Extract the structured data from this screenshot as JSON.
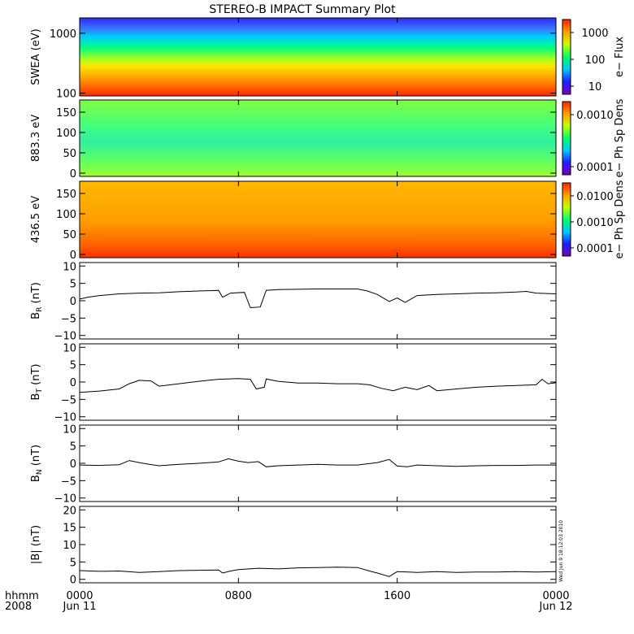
{
  "title": "STEREO-B IMPACT Summary Plot",
  "footer": {
    "hhmm_label": "hhmm",
    "year_label": "2008",
    "start_date": "Jun 11",
    "end_date": "Jun 12",
    "stamp": "Wed Jun  9 18:12:03 2010"
  },
  "time_axis": {
    "range_hours": [
      0,
      24
    ],
    "ticks": [
      {
        "hour": 0,
        "label": "0000"
      },
      {
        "hour": 8,
        "label": "0800"
      },
      {
        "hour": 16,
        "label": "1600"
      },
      {
        "hour": 24,
        "label": "0000"
      }
    ]
  },
  "colors": {
    "spectrum": [
      "#7a00b8",
      "#1f1fff",
      "#00c8ff",
      "#00ff66",
      "#c8ff00",
      "#ffa000",
      "#ff2000"
    ],
    "trace": "#000000",
    "frame": "#000000"
  },
  "panels": [
    {
      "kind": "spectrogram",
      "ylabel": "SWEA (eV)",
      "ylabels": [
        {
          "v": 1000,
          "text": "1000"
        },
        {
          "v": 100,
          "text": "100"
        }
      ],
      "yrange": [
        90,
        1800
      ],
      "scale": "log",
      "colorbar": {
        "label": "e− Flux",
        "ticks": [
          "1000",
          "100",
          "10"
        ]
      }
    },
    {
      "kind": "spectrogram",
      "ylabel": "883.3 eV",
      "ylabels": [
        {
          "v": 150,
          "text": "150"
        },
        {
          "v": 100,
          "text": "100"
        },
        {
          "v": 50,
          "text": "50"
        },
        {
          "v": 0,
          "text": "0"
        }
      ],
      "yrange": [
        -8,
        180
      ],
      "colorbar": {
        "label": "e− Ph Sp Dens",
        "ticks": [
          "0.0010",
          "0.0001"
        ]
      }
    },
    {
      "kind": "spectrogram",
      "ylabel": "436.5 eV",
      "ylabels": [
        {
          "v": 150,
          "text": "150"
        },
        {
          "v": 100,
          "text": "100"
        },
        {
          "v": 50,
          "text": "50"
        },
        {
          "v": 0,
          "text": "0"
        }
      ],
      "yrange": [
        -8,
        180
      ],
      "colorbar": {
        "label": "e− Ph Sp Dens",
        "ticks": [
          "0.0100",
          "0.0010",
          "0.0001"
        ]
      }
    },
    {
      "kind": "line",
      "ylabel": "B",
      "ysub": "R",
      "yunit": " (nT)",
      "ylabels": [
        {
          "v": 10,
          "text": "10"
        },
        {
          "v": 5,
          "text": "5"
        },
        {
          "v": 0,
          "text": "0"
        },
        {
          "v": -5,
          "text": "−5"
        },
        {
          "v": -10,
          "text": "−10"
        }
      ],
      "yrange": [
        -11,
        11
      ],
      "series": [
        [
          0,
          0.5
        ],
        [
          0.4,
          1.0
        ],
        [
          1,
          1.5
        ],
        [
          2,
          2.0
        ],
        [
          3,
          2.2
        ],
        [
          4,
          2.3
        ],
        [
          5,
          2.6
        ],
        [
          6,
          2.8
        ],
        [
          7,
          3.0
        ],
        [
          7.2,
          1.0
        ],
        [
          7.6,
          2.2
        ],
        [
          8.3,
          2.4
        ],
        [
          8.6,
          -2.0
        ],
        [
          9.1,
          -1.8
        ],
        [
          9.4,
          3.0
        ],
        [
          10,
          3.2
        ],
        [
          11,
          3.3
        ],
        [
          12,
          3.4
        ],
        [
          13,
          3.4
        ],
        [
          14,
          3.4
        ],
        [
          14.5,
          2.8
        ],
        [
          15,
          1.8
        ],
        [
          15.6,
          -0.2
        ],
        [
          16,
          0.8
        ],
        [
          16.4,
          -0.5
        ],
        [
          17,
          1.5
        ],
        [
          18,
          1.8
        ],
        [
          19,
          2.0
        ],
        [
          20,
          2.2
        ],
        [
          21,
          2.3
        ],
        [
          22,
          2.5
        ],
        [
          22.5,
          2.7
        ],
        [
          23,
          2.2
        ],
        [
          24,
          2.0
        ]
      ]
    },
    {
      "kind": "line",
      "ylabel": "B",
      "ysub": "T",
      "yunit": " (nT)",
      "ylabels": [
        {
          "v": 10,
          "text": "10"
        },
        {
          "v": 5,
          "text": "5"
        },
        {
          "v": 0,
          "text": "0"
        },
        {
          "v": -5,
          "text": "−5"
        },
        {
          "v": -10,
          "text": "−10"
        }
      ],
      "yrange": [
        -11,
        11
      ],
      "series": [
        [
          0,
          -3.0
        ],
        [
          1,
          -2.6
        ],
        [
          2,
          -2.0
        ],
        [
          2.5,
          -0.5
        ],
        [
          3,
          0.5
        ],
        [
          3.6,
          0.3
        ],
        [
          4,
          -1.2
        ],
        [
          5,
          -0.5
        ],
        [
          6,
          0.2
        ],
        [
          7,
          0.8
        ],
        [
          8,
          1.0
        ],
        [
          8.6,
          0.8
        ],
        [
          8.9,
          -2.0
        ],
        [
          9.3,
          -1.5
        ],
        [
          9.4,
          0.9
        ],
        [
          10,
          0.2
        ],
        [
          11,
          -0.3
        ],
        [
          12,
          -0.3
        ],
        [
          13,
          -0.5
        ],
        [
          14,
          -0.5
        ],
        [
          14.6,
          -0.8
        ],
        [
          15.2,
          -1.8
        ],
        [
          15.8,
          -2.5
        ],
        [
          16.4,
          -1.5
        ],
        [
          17,
          -2.2
        ],
        [
          17.6,
          -1.0
        ],
        [
          18,
          -2.5
        ],
        [
          19,
          -2.0
        ],
        [
          20,
          -1.5
        ],
        [
          21,
          -1.2
        ],
        [
          22,
          -1.0
        ],
        [
          23,
          -0.8
        ],
        [
          23.3,
          0.8
        ],
        [
          23.6,
          -0.5
        ],
        [
          24,
          -0.2
        ]
      ]
    },
    {
      "kind": "line",
      "ylabel": "B",
      "ysub": "N",
      "yunit": " (nT)",
      "ylabels": [
        {
          "v": 10,
          "text": "10"
        },
        {
          "v": 5,
          "text": "5"
        },
        {
          "v": 0,
          "text": "0"
        },
        {
          "v": -5,
          "text": "−5"
        },
        {
          "v": -10,
          "text": "−10"
        }
      ],
      "yrange": [
        -11,
        11
      ],
      "series": [
        [
          0,
          -0.5
        ],
        [
          1,
          -0.6
        ],
        [
          2,
          -0.4
        ],
        [
          2.5,
          0.8
        ],
        [
          3,
          0.2
        ],
        [
          3.5,
          -0.3
        ],
        [
          4,
          -0.7
        ],
        [
          5,
          -0.3
        ],
        [
          6,
          0.0
        ],
        [
          7,
          0.4
        ],
        [
          7.5,
          1.3
        ],
        [
          8,
          0.6
        ],
        [
          8.5,
          0.2
        ],
        [
          9,
          0.5
        ],
        [
          9.4,
          -1.0
        ],
        [
          10,
          -0.7
        ],
        [
          11,
          -0.5
        ],
        [
          12,
          -0.3
        ],
        [
          13,
          -0.5
        ],
        [
          14,
          -0.5
        ],
        [
          15,
          0.2
        ],
        [
          15.6,
          1.1
        ],
        [
          16,
          -0.8
        ],
        [
          16.5,
          -1.0
        ],
        [
          17,
          -0.5
        ],
        [
          18,
          -0.7
        ],
        [
          19,
          -0.9
        ],
        [
          20,
          -0.7
        ],
        [
          21,
          -0.6
        ],
        [
          22,
          -0.6
        ],
        [
          23,
          -0.5
        ],
        [
          24,
          -0.5
        ]
      ]
    },
    {
      "kind": "line",
      "ylabel": "|B| (nT)",
      "ylabels": [
        {
          "v": 20,
          "text": "20"
        },
        {
          "v": 15,
          "text": "15"
        },
        {
          "v": 10,
          "text": "10"
        },
        {
          "v": 5,
          "text": "5"
        },
        {
          "v": 0,
          "text": "0"
        }
      ],
      "yrange": [
        -1,
        21
      ],
      "series": [
        [
          0,
          2.5
        ],
        [
          1,
          2.3
        ],
        [
          2,
          2.4
        ],
        [
          3,
          2.0
        ],
        [
          4,
          2.2
        ],
        [
          5,
          2.5
        ],
        [
          6,
          2.6
        ],
        [
          7,
          2.7
        ],
        [
          7.2,
          1.8
        ],
        [
          7.6,
          2.4
        ],
        [
          8,
          2.8
        ],
        [
          9,
          3.2
        ],
        [
          10,
          3.0
        ],
        [
          11,
          3.3
        ],
        [
          12,
          3.4
        ],
        [
          13,
          3.5
        ],
        [
          14,
          3.4
        ],
        [
          14.6,
          2.4
        ],
        [
          15,
          1.8
        ],
        [
          15.6,
          0.8
        ],
        [
          16,
          2.2
        ],
        [
          17,
          2.0
        ],
        [
          18,
          2.2
        ],
        [
          19,
          2.0
        ],
        [
          20,
          2.1
        ],
        [
          21,
          2.1
        ],
        [
          22,
          2.2
        ],
        [
          23,
          2.1
        ],
        [
          24,
          2.2
        ]
      ]
    }
  ]
}
